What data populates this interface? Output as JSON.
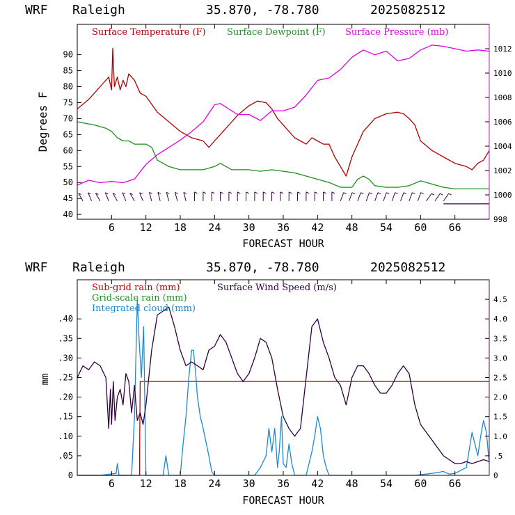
{
  "header_top": {
    "model": "WRF",
    "station": "Raleigh",
    "coords": "35.870, -78.780",
    "init": "2025082512"
  },
  "header_bottom": {
    "model": "WRF",
    "station": "Raleigh",
    "coords": "35.870, -78.780",
    "init": "2025082512"
  },
  "colors": {
    "temperature": "#b00000",
    "dewpoint": "#1e8c1e",
    "pressure": "#e000e0",
    "wind_barb": "#3a0048",
    "subgrid_rain": "#c00000",
    "grid_rain": "#1e8c1e",
    "cloud": "#1a8ad4",
    "wind_speed": "#300040"
  },
  "chart_data": [
    {
      "type": "line",
      "xlabel": "FORECAST HOUR",
      "ylabel": "Degrees F",
      "xlim": [
        0,
        72
      ],
      "x_ticks": [
        6,
        12,
        18,
        24,
        30,
        36,
        42,
        48,
        54,
        60,
        66
      ],
      "x_tick_labels": [
        "6",
        "12",
        "18",
        "24",
        "30",
        "36",
        "42",
        "48",
        "54",
        "60",
        "66"
      ],
      "ylim": [
        38.5,
        99.5
      ],
      "y_ticks": [
        40,
        45,
        50,
        55,
        60,
        65,
        70,
        75,
        80,
        85,
        90
      ],
      "y_tick_labels": [
        "40",
        "45",
        "50",
        "55",
        "60",
        "65",
        "70",
        "75",
        "80",
        "85",
        "90"
      ],
      "y2lim": [
        998,
        1014
      ],
      "y2_ticks": [
        998,
        1000,
        1002,
        1004,
        1006,
        1008,
        1010,
        1012
      ],
      "y2_tick_labels": [
        "998",
        "1000",
        "1002",
        "1004",
        "1006",
        "1008",
        "1010",
        "1012"
      ],
      "legend": [
        "Surface Temperature (F)",
        "Surface Dewpoint (F)",
        "Surface Pressure (mb)"
      ],
      "legend_placement": "top",
      "series": [
        {
          "name": "Surface Temperature (F)",
          "axis": "left",
          "x": [
            0,
            2,
            4,
            5.5,
            6,
            6.2,
            6.5,
            7,
            7.5,
            8,
            8.5,
            9,
            10,
            11,
            12,
            14,
            16,
            18,
            20,
            22,
            23,
            24,
            26,
            28,
            30,
            31.5,
            33,
            34,
            35,
            36,
            37,
            38,
            39,
            40,
            41,
            42,
            43,
            44,
            45,
            46,
            47,
            48,
            49,
            50,
            52,
            54,
            56,
            57,
            58,
            59,
            60,
            62,
            64,
            66,
            68,
            69,
            70,
            71,
            72
          ],
          "values": [
            73,
            76,
            80,
            83,
            79,
            92,
            80,
            83,
            79,
            82,
            80,
            84,
            82,
            78,
            77,
            72,
            69,
            66,
            64,
            63,
            61,
            63,
            67,
            71,
            74,
            75.5,
            75,
            73,
            70,
            68,
            66,
            64,
            63,
            62,
            64,
            63,
            62,
            62,
            58,
            55,
            52,
            58,
            62,
            66,
            70,
            71.5,
            72,
            71.5,
            70,
            68,
            63,
            60,
            58,
            56,
            55,
            54,
            56,
            57,
            60
          ]
        },
        {
          "name": "Surface Dewpoint (F)",
          "axis": "left",
          "x": [
            0,
            3,
            5,
            6,
            7,
            8,
            9,
            10,
            11,
            12,
            13,
            14,
            16,
            18,
            20,
            22,
            24,
            25,
            26,
            27,
            28,
            30,
            32,
            34,
            36,
            38,
            40,
            42,
            44,
            46,
            48,
            49,
            50,
            51,
            52,
            54,
            56,
            58,
            60,
            62,
            64,
            66,
            68,
            70,
            72
          ],
          "values": [
            69,
            68,
            67,
            66,
            64,
            63,
            63,
            62,
            62,
            62,
            61,
            57,
            55,
            54,
            54,
            54,
            55,
            56,
            55,
            54,
            54,
            54,
            53.5,
            54,
            53.5,
            53,
            52,
            51,
            50,
            48.5,
            48.5,
            51,
            52,
            51,
            49,
            48.5,
            48.5,
            49,
            50.5,
            49.5,
            48.5,
            48,
            48,
            48,
            48
          ]
        },
        {
          "name": "Surface Pressure (mb)",
          "axis": "right",
          "x": [
            0,
            2,
            4,
            6,
            8,
            10,
            12,
            14,
            16,
            18,
            20,
            22,
            24,
            25,
            26,
            28,
            30,
            32,
            34,
            36,
            38,
            40,
            42,
            44,
            46,
            48,
            50,
            52,
            54,
            56,
            58,
            60,
            62,
            64,
            66,
            68,
            70,
            72
          ],
          "values": [
            1000.8,
            1001.2,
            1001,
            1001.1,
            1001,
            1001.3,
            1002.5,
            1003.3,
            1003.9,
            1004.5,
            1005.2,
            1006,
            1007.4,
            1007.5,
            1007.2,
            1006.6,
            1006.6,
            1006.1,
            1006.9,
            1006.9,
            1007.2,
            1008.2,
            1009.4,
            1009.6,
            1010.3,
            1011.3,
            1011.9,
            1011.5,
            1011.8,
            1011,
            1011.2,
            1011.9,
            1012.3,
            1012.2,
            1012,
            1011.8,
            1011.9,
            1011.8
          ]
        }
      ],
      "wind_barbs_y": 45.5
    },
    {
      "type": "line",
      "xlabel": "FORECAST HOUR",
      "ylabel": "mm",
      "xlim": [
        0,
        72
      ],
      "x_ticks": [
        6,
        12,
        18,
        24,
        30,
        36,
        42,
        48,
        54,
        60,
        66
      ],
      "x_tick_labels": [
        "6",
        "12",
        "18",
        "24",
        "30",
        "36",
        "42",
        "48",
        "54",
        "60",
        "66"
      ],
      "ylim": [
        0,
        0.5
      ],
      "y_ticks": [
        0,
        0.05,
        0.1,
        0.15,
        0.2,
        0.25,
        0.3,
        0.35,
        0.4
      ],
      "y_tick_labels": [
        "0",
        ".05",
        ".10",
        ".15",
        ".20",
        ".25",
        ".30",
        ".35",
        ".40"
      ],
      "y2lim": [
        0,
        5
      ],
      "y2_ticks": [
        0,
        0.5,
        1,
        1.5,
        2,
        2.5,
        3,
        3.5,
        4,
        4.5
      ],
      "y2_tick_labels": [
        "0",
        ".5",
        "1.0",
        "1.5",
        "2.0",
        "2.5",
        "3.0",
        "3.5",
        "4.0",
        "4.5"
      ],
      "legend": [
        "Sub-grid rain (mm)",
        "Surface Wind Speed (m/s)",
        "Grid-scale rain (mm)",
        "Integrated cloud (mm)"
      ],
      "legend_placement": "top-left",
      "series": [
        {
          "name": "Sub-grid rain (mm)",
          "axis": "left",
          "x": [
            0,
            10.9,
            10.9,
            11,
            11.1,
            72
          ],
          "values": [
            0,
            0,
            0.05,
            0.24,
            0.24,
            0.24
          ]
        },
        {
          "name": "Integrated cloud (mm)",
          "axis": "right",
          "x": [
            0,
            4,
            6.8,
            7,
            7.3,
            8,
            9.5,
            10,
            10.5,
            10.8,
            11.2,
            11.6,
            12,
            15,
            15.5,
            16,
            18,
            18.5,
            19,
            19.5,
            20,
            20.3,
            20.7,
            21,
            21.5,
            22,
            23,
            23.5,
            24,
            31,
            32,
            33,
            33.5,
            34,
            34.5,
            35,
            35.3,
            35.7,
            36,
            36.5,
            37,
            37.5,
            38,
            40,
            41,
            41.5,
            42,
            42.5,
            43,
            43.5,
            44,
            45,
            59,
            62,
            64,
            65,
            66,
            68,
            69,
            69.5,
            70,
            70.5,
            71,
            71.5,
            72
          ],
          "values": [
            0,
            0,
            0.05,
            0.3,
            0,
            0,
            0,
            1.5,
            4.5,
            3.5,
            2.5,
            3.8,
            0,
            0,
            0.5,
            0,
            0,
            0.8,
            1.5,
            2.5,
            3.2,
            3.2,
            2.6,
            2,
            1.5,
            1.2,
            0.5,
            0.1,
            0,
            0,
            0.2,
            0.5,
            1.2,
            0.6,
            1.2,
            0.2,
            0.6,
            1.5,
            0.3,
            0.2,
            0.8,
            0.3,
            0,
            0,
            0.6,
            1.0,
            1.5,
            1.2,
            0.5,
            0.2,
            0,
            0,
            0,
            0.05,
            0.1,
            0.03,
            0.05,
            0.2,
            1.1,
            0.8,
            0.5,
            1.0,
            1.4,
            1.1,
            0.3
          ]
        },
        {
          "name": "Surface Wind Speed (m/s)",
          "axis": "right",
          "x": [
            0,
            1,
            2,
            3,
            4,
            5,
            5.5,
            5.8,
            6,
            6.3,
            6.6,
            7,
            7.5,
            8,
            8.5,
            9,
            9.5,
            10,
            10.5,
            11,
            11.5,
            12,
            13,
            14,
            15,
            16,
            17,
            18,
            19,
            20,
            21,
            22,
            23,
            24,
            25,
            26,
            27,
            28,
            29,
            30,
            31,
            32,
            33,
            34,
            35,
            36,
            37,
            38,
            39,
            40,
            41,
            42,
            43,
            44,
            45,
            46,
            47,
            48,
            49,
            50,
            51,
            52,
            53,
            54,
            55,
            56,
            57,
            58,
            59,
            60,
            61,
            62,
            63,
            64,
            65,
            66,
            67,
            68,
            69,
            70,
            71,
            72
          ],
          "values": [
            2.5,
            2.8,
            2.7,
            2.9,
            2.8,
            2.5,
            1.2,
            2.2,
            1.3,
            2.4,
            1.4,
            2.0,
            2.2,
            1.8,
            2.6,
            2.4,
            1.6,
            2.3,
            1.4,
            1.6,
            1.3,
            1.8,
            3.2,
            4.1,
            4.2,
            4.3,
            3.8,
            3.2,
            2.8,
            2.9,
            2.8,
            2.7,
            3.2,
            3.3,
            3.6,
            3.4,
            3.0,
            2.6,
            2.4,
            2.6,
            3.0,
            3.5,
            3.4,
            3.0,
            2.2,
            1.5,
            1.2,
            1.0,
            1.2,
            2.5,
            3.8,
            4.0,
            3.4,
            3.0,
            2.5,
            2.3,
            1.8,
            2.5,
            2.8,
            2.8,
            2.6,
            2.3,
            2.1,
            2.1,
            2.3,
            2.6,
            2.8,
            2.6,
            1.8,
            1.3,
            1.1,
            0.9,
            0.7,
            0.5,
            0.4,
            0.3,
            0.3,
            0.35,
            0.3,
            0.35,
            0.4,
            0.35
          ]
        }
      ]
    }
  ]
}
